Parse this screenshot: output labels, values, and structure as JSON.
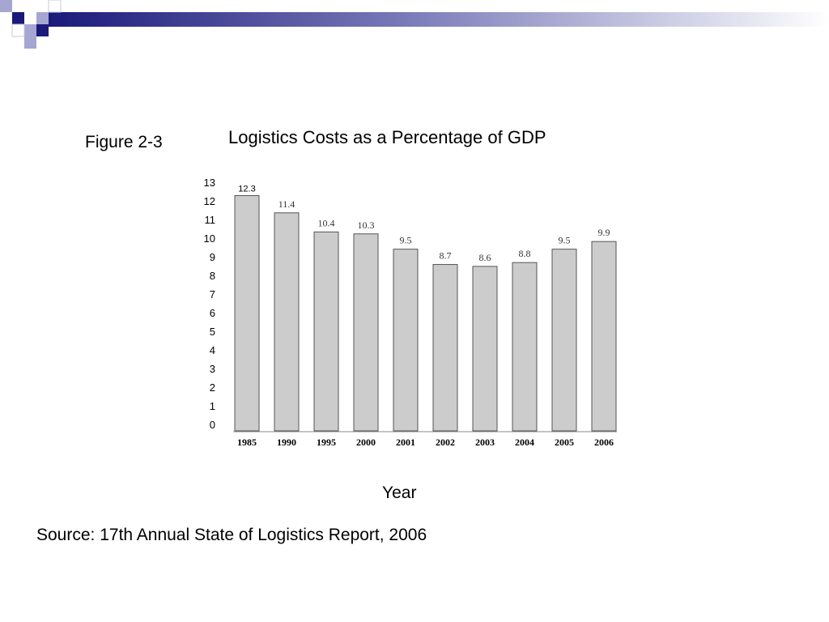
{
  "slide": {
    "figure_label": "Figure 2-3",
    "source": "Source: 17th Annual State of Logistics Report, 2006",
    "colors": {
      "accent_dark": "#1a1a7a",
      "accent_mid": "#5c5ca8",
      "accent_light": "#a6a6d2",
      "bar": "#cccccc"
    }
  },
  "chart_data": {
    "type": "bar",
    "title": "Logistics Costs as a Percentage of GDP",
    "xlabel": "Year",
    "ylabel": "",
    "categories": [
      "1985",
      "1990",
      "1995",
      "2000",
      "2001",
      "2002",
      "2003",
      "2004",
      "2005",
      "2006"
    ],
    "values": [
      12.3,
      11.4,
      10.4,
      10.3,
      9.5,
      8.7,
      8.6,
      8.8,
      9.5,
      9.9
    ],
    "data_labels": [
      "12.3",
      "11.4",
      "10.4",
      "10.3",
      "9.5",
      "8.7",
      "8.6",
      "8.8",
      "9.5",
      "9.9"
    ],
    "ylim": [
      0,
      13
    ],
    "yticks": [
      0,
      1,
      2,
      3,
      4,
      5,
      6,
      7,
      8,
      9,
      10,
      11,
      12,
      13
    ],
    "grid": false,
    "legend": "none"
  }
}
